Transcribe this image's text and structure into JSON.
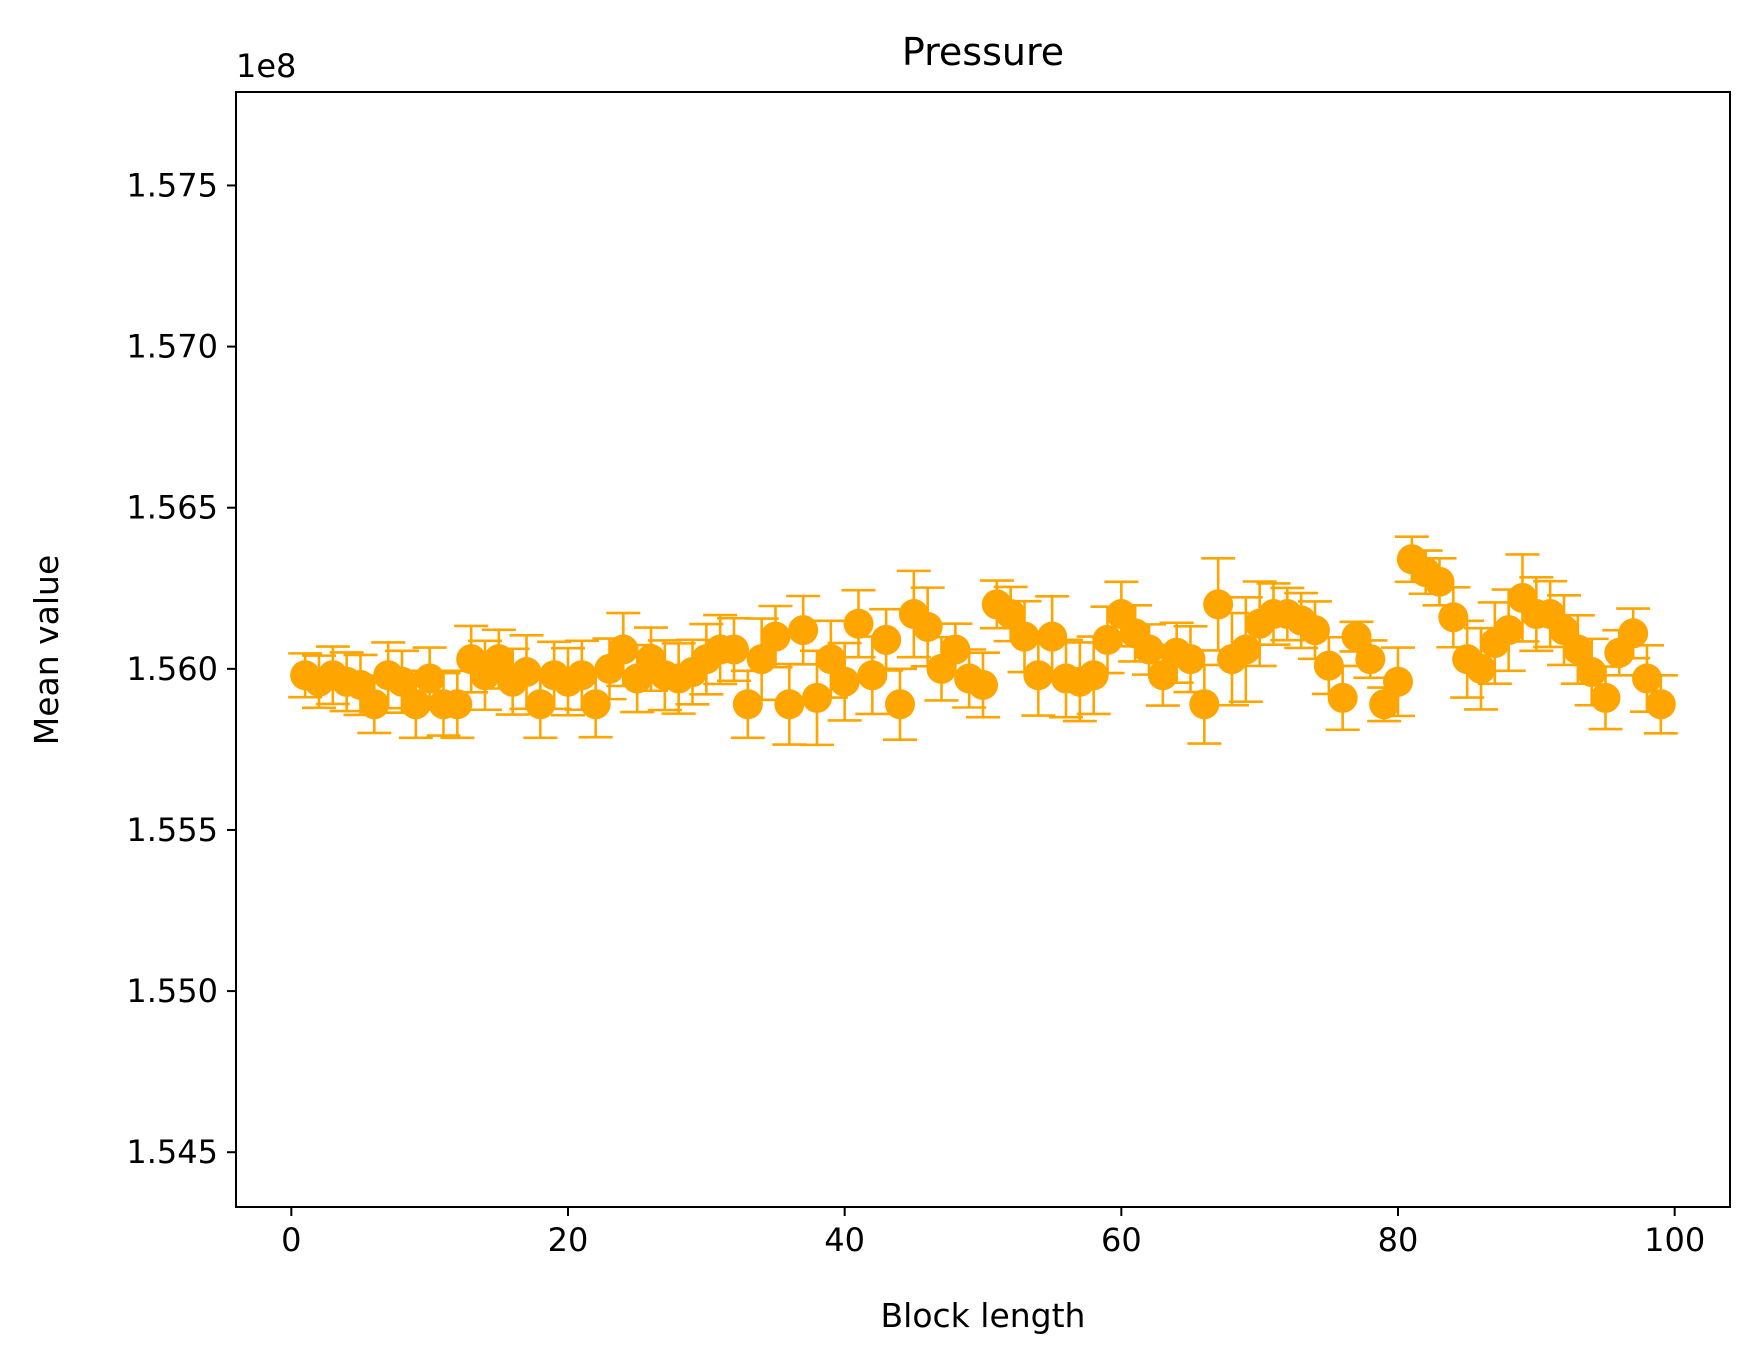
{
  "chart_data": {
    "type": "scatter",
    "title": "Pressure",
    "xlabel": "Block length",
    "ylabel": "Mean value",
    "y_offset_label": "1e8",
    "y_multiplier": 100000000,
    "xlim": [
      -4,
      104
    ],
    "ylim": [
      1.5433,
      1.5779
    ],
    "xticks": [
      0,
      20,
      40,
      60,
      80,
      100
    ],
    "xtick_labels": [
      "0",
      "20",
      "40",
      "60",
      "80",
      "100"
    ],
    "yticks": [
      1.545,
      1.55,
      1.555,
      1.56,
      1.565,
      1.57,
      1.575
    ],
    "ytick_labels": [
      "1.545",
      "1.550",
      "1.555",
      "1.560",
      "1.565",
      "1.570",
      "1.575"
    ],
    "grid": false,
    "legend": "none",
    "color": "#ffa500",
    "series": [
      {
        "x": [
          1,
          2,
          3,
          4,
          5,
          6,
          7,
          8,
          9,
          10,
          11,
          12,
          13,
          14,
          15,
          16,
          17,
          18,
          19,
          20,
          21,
          22,
          23,
          24,
          25,
          26,
          27,
          28,
          29,
          30,
          31,
          32,
          33,
          34,
          35,
          36,
          37,
          38,
          39,
          40,
          41,
          42,
          43,
          44,
          45,
          46,
          47,
          48,
          49,
          50,
          51,
          52,
          53,
          54,
          55,
          56,
          57,
          58,
          59,
          60,
          61,
          62,
          63,
          64,
          65,
          66,
          67,
          68,
          69,
          70,
          71,
          72,
          73,
          74,
          75,
          76,
          77,
          78,
          79,
          80,
          81,
          82,
          83,
          84,
          85,
          86,
          87,
          88,
          89,
          90,
          91,
          92,
          93,
          94,
          95,
          96,
          97,
          98,
          99
        ],
        "y": [
          1.5598,
          1.5596,
          1.5598,
          1.5596,
          1.5595,
          1.5589,
          1.5598,
          1.5596,
          1.5589,
          1.5597,
          1.5589,
          1.5589,
          1.5603,
          1.5598,
          1.5603,
          1.5596,
          1.5599,
          1.5589,
          1.5598,
          1.5596,
          1.5598,
          1.5589,
          1.56,
          1.5606,
          1.5597,
          1.5603,
          1.5598,
          1.5597,
          1.5599,
          1.5603,
          1.5606,
          1.5606,
          1.5589,
          1.5603,
          1.561,
          1.5589,
          1.5612,
          1.5591,
          1.5603,
          1.5596,
          1.5614,
          1.5598,
          1.5609,
          1.5589,
          1.5617,
          1.5613,
          1.56,
          1.5606,
          1.5597,
          1.5595,
          1.562,
          1.5617,
          1.561,
          1.5598,
          1.561,
          1.5597,
          1.5596,
          1.5598,
          1.5609,
          1.5617,
          1.5611,
          1.5606,
          1.5598,
          1.5605,
          1.5603,
          1.5589,
          1.562,
          1.5603,
          1.5606,
          1.5614,
          1.5617,
          1.5617,
          1.5615,
          1.5612,
          1.5601,
          1.5591,
          1.561,
          1.5603,
          1.5589,
          1.5596,
          1.5634,
          1.563,
          1.5627,
          1.5616,
          1.5603,
          1.56,
          1.5608,
          1.5612,
          1.5622,
          1.5617,
          1.5617,
          1.5612,
          1.5606,
          1.5599,
          1.5591,
          1.5605,
          1.5611,
          1.5597,
          1.5589
        ],
        "err": [
          0.00068,
          0.00081,
          0.00089,
          0.00091,
          0.00093,
          0.00089,
          0.00102,
          0.00096,
          0.00104,
          0.00096,
          0.00097,
          0.00104,
          0.00103,
          0.00107,
          0.00091,
          0.00102,
          0.00114,
          0.00104,
          0.00104,
          0.00104,
          0.00107,
          0.00102,
          0.00094,
          0.00113,
          0.00104,
          0.00098,
          0.00108,
          0.00109,
          0.001,
          0.00109,
          0.00107,
          0.00097,
          0.00104,
          0.00126,
          0.00095,
          0.00125,
          0.00106,
          0.00146,
          0.00119,
          0.0012,
          0.00104,
          0.0012,
          0.00095,
          0.0011,
          0.00134,
          0.00122,
          0.00098,
          0.0008,
          0.0009,
          0.001,
          0.00074,
          0.00084,
          0.0011,
          0.00125,
          0.00125,
          0.0012,
          0.00122,
          0.0012,
          0.00103,
          0.001,
          0.00087,
          0.00078,
          0.00094,
          0.00093,
          0.00102,
          0.00122,
          0.00143,
          0.00143,
          0.00162,
          0.00131,
          0.00095,
          0.00081,
          0.00085,
          0.00089,
          0.00088,
          0.00099,
          0.00046,
          0.00058,
          0.00052,
          0.00106,
          0.0007,
          0.00067,
          0.00073,
          0.00093,
          0.00119,
          0.00126,
          0.00126,
          0.00126,
          0.00135,
          0.00114,
          0.00102,
          0.00108,
          0.00106,
          0.00103,
          0.00097,
          0.0007,
          0.00077,
          0.00103,
          0.0009
        ]
      }
    ]
  }
}
